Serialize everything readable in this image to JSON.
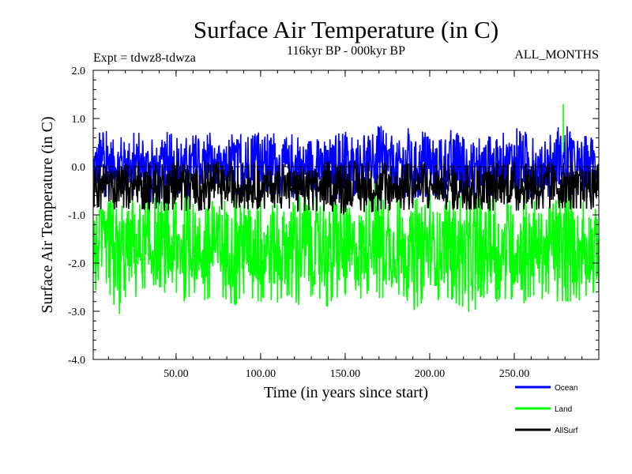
{
  "chart_data": {
    "type": "line",
    "title": "Surface Air Temperature (in C)",
    "subtitle_left": "Expt = tdwz8-tdwza",
    "subtitle_center": "116kyr BP - 000kyr BP",
    "subtitle_right": "ALL_MONTHS",
    "xlabel": "Time (in years since start)",
    "ylabel": "Surface Air Temperature (in C)",
    "xlim": [
      1,
      300
    ],
    "ylim": [
      -4.0,
      2.0
    ],
    "x_ticks": [
      50,
      100,
      150,
      200,
      250
    ],
    "x_tick_labels": [
      "50.00",
      "100.00",
      "150.00",
      "200.00",
      "250.00"
    ],
    "y_ticks": [
      -4.0,
      -3.0,
      -2.0,
      -1.0,
      0.0,
      1.0,
      2.0
    ],
    "y_tick_labels": [
      "-4.0",
      "-3.0",
      "-2.0",
      "-1.0",
      "0.0",
      "1.0",
      "2.0"
    ],
    "zero_line": true,
    "x_step": 0.25,
    "series": [
      {
        "name": "Ocean",
        "color": "#0000ff",
        "center": 0.1,
        "upper_envelope": [
          [
            1,
            0.65
          ],
          [
            5,
            0.8
          ],
          [
            10,
            0.9
          ],
          [
            15,
            0.7
          ],
          [
            20,
            0.75
          ],
          [
            25,
            0.8
          ],
          [
            30,
            0.7
          ],
          [
            35,
            0.75
          ],
          [
            40,
            0.6
          ],
          [
            45,
            0.85
          ],
          [
            50,
            0.65
          ],
          [
            55,
            0.6
          ],
          [
            60,
            0.75
          ],
          [
            65,
            0.6
          ],
          [
            70,
            0.8
          ],
          [
            75,
            0.45
          ],
          [
            80,
            0.5
          ],
          [
            85,
            0.9
          ],
          [
            90,
            0.65
          ],
          [
            95,
            0.7
          ],
          [
            100,
            0.85
          ],
          [
            105,
            0.95
          ],
          [
            110,
            0.7
          ],
          [
            115,
            0.65
          ],
          [
            120,
            0.75
          ],
          [
            125,
            0.7
          ],
          [
            130,
            0.9
          ],
          [
            135,
            0.6
          ],
          [
            140,
            0.55
          ],
          [
            145,
            0.85
          ],
          [
            150,
            0.8
          ],
          [
            155,
            0.65
          ],
          [
            160,
            0.7
          ],
          [
            165,
            0.75
          ],
          [
            170,
            0.9
          ],
          [
            175,
            0.8
          ],
          [
            180,
            0.7
          ],
          [
            185,
            0.9
          ],
          [
            190,
            0.75
          ],
          [
            195,
            0.8
          ],
          [
            200,
            0.7
          ],
          [
            205,
            0.6
          ],
          [
            210,
            0.75
          ],
          [
            215,
            0.85
          ],
          [
            220,
            0.7
          ],
          [
            225,
            0.75
          ],
          [
            230,
            0.65
          ],
          [
            235,
            0.8
          ],
          [
            240,
            0.7
          ],
          [
            245,
            0.75
          ],
          [
            250,
            0.9
          ],
          [
            255,
            0.75
          ],
          [
            260,
            0.8
          ],
          [
            265,
            0.6
          ],
          [
            270,
            0.7
          ],
          [
            275,
            0.85
          ],
          [
            280,
            1.0
          ],
          [
            285,
            0.6
          ],
          [
            290,
            0.65
          ],
          [
            295,
            0.7
          ],
          [
            300,
            0.75
          ]
        ],
        "lower_envelope": [
          [
            1,
            -0.65
          ],
          [
            10,
            -0.7
          ],
          [
            20,
            -0.6
          ],
          [
            30,
            -0.75
          ],
          [
            40,
            -0.85
          ],
          [
            50,
            -0.6
          ],
          [
            60,
            -0.7
          ],
          [
            70,
            -0.5
          ],
          [
            80,
            -0.55
          ],
          [
            90,
            -0.7
          ],
          [
            100,
            -0.6
          ],
          [
            110,
            -0.65
          ],
          [
            120,
            -0.7
          ],
          [
            130,
            -0.75
          ],
          [
            140,
            -0.6
          ],
          [
            150,
            -0.8
          ],
          [
            160,
            -0.5
          ],
          [
            170,
            -0.55
          ],
          [
            180,
            -0.75
          ],
          [
            190,
            -0.7
          ],
          [
            200,
            -0.65
          ],
          [
            210,
            -0.7
          ],
          [
            220,
            -0.6
          ],
          [
            230,
            -0.75
          ],
          [
            240,
            -0.6
          ],
          [
            250,
            -0.55
          ],
          [
            260,
            -0.7
          ],
          [
            270,
            -0.65
          ],
          [
            280,
            -0.6
          ],
          [
            290,
            -0.7
          ],
          [
            300,
            -0.65
          ]
        ]
      },
      {
        "name": "Land",
        "color": "#00ff00",
        "center": -1.55,
        "upper_envelope": [
          [
            1,
            -0.55
          ],
          [
            5,
            -0.5
          ],
          [
            10,
            -0.6
          ],
          [
            15,
            -0.65
          ],
          [
            20,
            -0.5
          ],
          [
            25,
            -0.6
          ],
          [
            30,
            -0.55
          ],
          [
            35,
            -0.65
          ],
          [
            40,
            -0.5
          ],
          [
            45,
            -0.55
          ],
          [
            50,
            -0.6
          ],
          [
            55,
            -0.5
          ],
          [
            60,
            -0.55
          ],
          [
            65,
            -0.65
          ],
          [
            70,
            -0.6
          ],
          [
            75,
            -0.55
          ],
          [
            80,
            -0.5
          ],
          [
            85,
            -0.6
          ],
          [
            90,
            -0.55
          ],
          [
            95,
            -0.5
          ],
          [
            100,
            -0.45
          ],
          [
            105,
            -0.55
          ],
          [
            110,
            -0.6
          ],
          [
            115,
            -0.5
          ],
          [
            120,
            -0.55
          ],
          [
            125,
            -0.5
          ],
          [
            130,
            -0.6
          ],
          [
            135,
            -0.55
          ],
          [
            140,
            -0.5
          ],
          [
            145,
            -0.6
          ],
          [
            150,
            -0.55
          ],
          [
            155,
            -0.6
          ],
          [
            160,
            -0.5
          ],
          [
            165,
            -0.15
          ],
          [
            170,
            -0.35
          ],
          [
            175,
            -0.55
          ],
          [
            180,
            -0.6
          ],
          [
            185,
            -0.5
          ],
          [
            190,
            -0.55
          ],
          [
            195,
            -0.6
          ],
          [
            200,
            -0.5
          ],
          [
            205,
            -0.55
          ],
          [
            210,
            -0.6
          ],
          [
            215,
            -0.5
          ],
          [
            220,
            -0.55
          ],
          [
            225,
            -0.6
          ],
          [
            230,
            -0.55
          ],
          [
            235,
            -0.5
          ],
          [
            240,
            -0.6
          ],
          [
            245,
            -0.55
          ],
          [
            250,
            -0.6
          ],
          [
            255,
            -0.5
          ],
          [
            260,
            -0.55
          ],
          [
            265,
            -0.6
          ],
          [
            270,
            -0.5
          ],
          [
            275,
            -0.55
          ],
          [
            280,
            -0.3
          ],
          [
            285,
            -0.55
          ],
          [
            290,
            -0.6
          ],
          [
            295,
            -0.5
          ],
          [
            300,
            -0.55
          ]
        ],
        "lower_envelope": [
          [
            1,
            -2.6
          ],
          [
            5,
            -2.9
          ],
          [
            10,
            -2.75
          ],
          [
            15,
            -3.05
          ],
          [
            18,
            -3.4
          ],
          [
            20,
            -2.85
          ],
          [
            25,
            -2.7
          ],
          [
            30,
            -2.95
          ],
          [
            35,
            -2.8
          ],
          [
            40,
            -2.9
          ],
          [
            45,
            -3.05
          ],
          [
            50,
            -2.75
          ],
          [
            55,
            -2.85
          ],
          [
            60,
            -2.7
          ],
          [
            65,
            -2.95
          ],
          [
            70,
            -2.8
          ],
          [
            75,
            -2.9
          ],
          [
            80,
            -2.85
          ],
          [
            85,
            -2.95
          ],
          [
            90,
            -2.7
          ],
          [
            95,
            -2.85
          ],
          [
            100,
            -2.9
          ],
          [
            105,
            -2.8
          ],
          [
            110,
            -2.95
          ],
          [
            115,
            -2.75
          ],
          [
            120,
            -2.85
          ],
          [
            125,
            -3.05
          ],
          [
            130,
            -2.8
          ],
          [
            135,
            -2.85
          ],
          [
            140,
            -3.0
          ],
          [
            145,
            -2.75
          ],
          [
            150,
            -3.2
          ],
          [
            155,
            -3.0
          ],
          [
            160,
            -2.85
          ],
          [
            165,
            -2.6
          ],
          [
            170,
            -2.8
          ],
          [
            175,
            -2.9
          ],
          [
            180,
            -2.85
          ],
          [
            185,
            -2.75
          ],
          [
            190,
            -3.05
          ],
          [
            195,
            -2.9
          ],
          [
            200,
            -2.8
          ],
          [
            205,
            -2.85
          ],
          [
            210,
            -2.75
          ],
          [
            215,
            -2.9
          ],
          [
            220,
            -3.0
          ],
          [
            225,
            -3.2
          ],
          [
            230,
            -2.85
          ],
          [
            235,
            -2.75
          ],
          [
            240,
            -2.9
          ],
          [
            245,
            -2.8
          ],
          [
            250,
            -2.85
          ],
          [
            255,
            -3.0
          ],
          [
            260,
            -2.75
          ],
          [
            265,
            -2.85
          ],
          [
            270,
            -2.7
          ],
          [
            275,
            -2.9
          ],
          [
            280,
            -2.95
          ],
          [
            285,
            -2.8
          ],
          [
            290,
            -2.85
          ],
          [
            295,
            -2.75
          ],
          [
            300,
            -2.7
          ]
        ]
      },
      {
        "name": "AllSurf",
        "color": "#000000",
        "center": -0.35,
        "upper_envelope": [
          [
            1,
            0.1
          ],
          [
            50,
            0.15
          ],
          [
            100,
            0.1
          ],
          [
            150,
            0.15
          ],
          [
            200,
            0.1
          ],
          [
            250,
            0.12
          ],
          [
            300,
            0.1
          ]
        ],
        "lower_envelope": [
          [
            1,
            -0.9
          ],
          [
            50,
            -0.95
          ],
          [
            100,
            -0.9
          ],
          [
            150,
            -1.0
          ],
          [
            200,
            -0.9
          ],
          [
            250,
            -0.95
          ],
          [
            300,
            -0.9
          ]
        ]
      }
    ],
    "legend_position": "bottom-right"
  }
}
